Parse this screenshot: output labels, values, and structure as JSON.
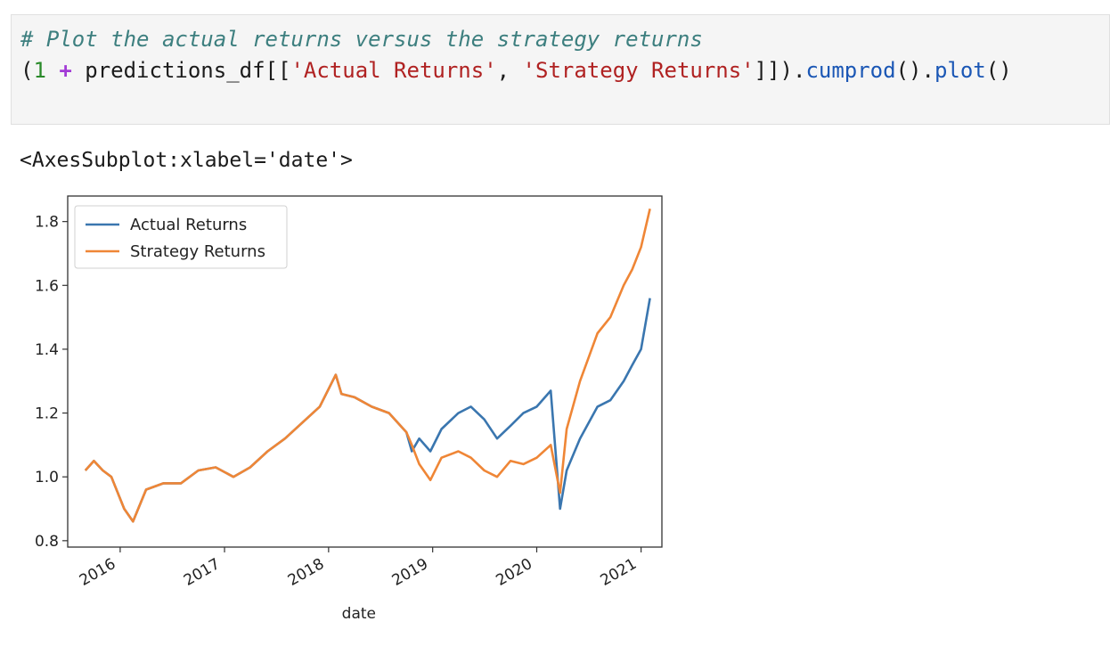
{
  "code": {
    "comment": "# Plot the actual returns versus the strategy returns",
    "open_paren": "(",
    "one": "1",
    "plus": "+",
    "pre_df": " predictions_df[[",
    "str1": "'Actual Returns'",
    "comma": ", ",
    "str2": "'Strategy Returns'",
    "close": "]]).",
    "cumprod": "cumprod",
    "mid": "().",
    "plot": "plot",
    "end": "()"
  },
  "output": {
    "repr": "<AxesSubplot:xlabel='date'>"
  },
  "colors": {
    "actual": "#3a76af",
    "strategy": "#ef8636"
  },
  "chart_data": {
    "type": "line",
    "xlabel": "date",
    "ylabel": "",
    "ylim": [
      0.78,
      1.88
    ],
    "xlim": [
      "2015-07-01",
      "2021-03-15"
    ],
    "yticks": [
      0.8,
      1.0,
      1.2,
      1.4,
      1.6,
      1.8
    ],
    "ytick_labels": [
      "0.8",
      "1.0",
      "1.2",
      "1.4",
      "1.6",
      "1.8"
    ],
    "xticks": [
      "2016-01-01",
      "2017-01-01",
      "2018-01-01",
      "2019-01-01",
      "2020-01-01",
      "2021-01-01"
    ],
    "xtick_labels": [
      "2016",
      "2017",
      "2018",
      "2019",
      "2020",
      "2021"
    ],
    "legend": "top-left",
    "grid": false,
    "series": [
      {
        "name": "Actual Returns",
        "x": [
          "2015-09-01",
          "2015-10-01",
          "2015-11-01",
          "2015-12-01",
          "2016-01-15",
          "2016-02-15",
          "2016-04-01",
          "2016-06-01",
          "2016-08-01",
          "2016-10-01",
          "2016-12-01",
          "2017-02-01",
          "2017-04-01",
          "2017-06-01",
          "2017-08-01",
          "2017-10-01",
          "2017-12-01",
          "2018-01-26",
          "2018-02-15",
          "2018-04-01",
          "2018-06-01",
          "2018-08-01",
          "2018-10-01",
          "2018-10-20",
          "2018-11-15",
          "2018-12-24",
          "2019-02-01",
          "2019-04-01",
          "2019-05-15",
          "2019-07-01",
          "2019-08-15",
          "2019-10-01",
          "2019-11-15",
          "2020-01-01",
          "2020-02-19",
          "2020-03-23",
          "2020-04-15",
          "2020-06-01",
          "2020-08-01",
          "2020-09-15",
          "2020-11-01",
          "2020-12-01",
          "2021-01-01",
          "2021-02-01"
        ],
        "y": [
          1.02,
          1.05,
          1.02,
          1.0,
          0.9,
          0.86,
          0.96,
          0.98,
          0.98,
          1.02,
          1.03,
          1.0,
          1.03,
          1.08,
          1.12,
          1.17,
          1.22,
          1.32,
          1.26,
          1.25,
          1.22,
          1.2,
          1.14,
          1.08,
          1.12,
          1.08,
          1.15,
          1.2,
          1.22,
          1.18,
          1.12,
          1.16,
          1.2,
          1.22,
          1.27,
          0.9,
          1.02,
          1.12,
          1.22,
          1.24,
          1.3,
          1.35,
          1.4,
          1.56
        ]
      },
      {
        "name": "Strategy Returns",
        "x": [
          "2015-09-01",
          "2015-10-01",
          "2015-11-01",
          "2015-12-01",
          "2016-01-15",
          "2016-02-15",
          "2016-04-01",
          "2016-06-01",
          "2016-08-01",
          "2016-10-01",
          "2016-12-01",
          "2017-02-01",
          "2017-04-01",
          "2017-06-01",
          "2017-08-01",
          "2017-10-01",
          "2017-12-01",
          "2018-01-26",
          "2018-02-15",
          "2018-04-01",
          "2018-06-01",
          "2018-08-01",
          "2018-10-01",
          "2018-10-20",
          "2018-11-15",
          "2018-12-24",
          "2019-02-01",
          "2019-04-01",
          "2019-05-15",
          "2019-07-01",
          "2019-08-15",
          "2019-10-01",
          "2019-11-15",
          "2020-01-01",
          "2020-02-19",
          "2020-03-23",
          "2020-04-15",
          "2020-06-01",
          "2020-08-01",
          "2020-09-15",
          "2020-11-01",
          "2020-12-01",
          "2021-01-01",
          "2021-02-01"
        ],
        "y": [
          1.02,
          1.05,
          1.02,
          1.0,
          0.9,
          0.86,
          0.96,
          0.98,
          0.98,
          1.02,
          1.03,
          1.0,
          1.03,
          1.08,
          1.12,
          1.17,
          1.22,
          1.32,
          1.26,
          1.25,
          1.22,
          1.2,
          1.14,
          1.1,
          1.04,
          0.99,
          1.06,
          1.08,
          1.06,
          1.02,
          1.0,
          1.05,
          1.04,
          1.06,
          1.1,
          0.95,
          1.15,
          1.3,
          1.45,
          1.5,
          1.6,
          1.65,
          1.72,
          1.84
        ]
      }
    ]
  }
}
